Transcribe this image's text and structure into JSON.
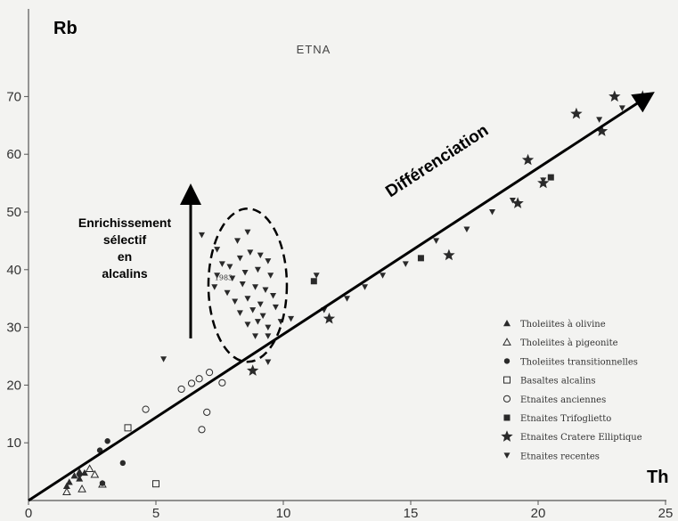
{
  "chart_data": {
    "type": "scatter",
    "title": "ETNA",
    "xlabel": "Th",
    "ylabel": "Rb",
    "xlim": [
      0,
      25
    ],
    "ylim": [
      0,
      72
    ],
    "xticks": [
      0,
      5,
      10,
      15,
      20,
      25
    ],
    "yticks": [
      10,
      20,
      30,
      40,
      50,
      60,
      70
    ],
    "grid": false,
    "legend_position": "bottom-right",
    "series": [
      {
        "name": "Tholeiites à olivine",
        "marker": "triangle-filled",
        "points": [
          [
            1.6,
            3.2
          ],
          [
            1.8,
            4.3
          ],
          [
            2.0,
            5.0
          ],
          [
            2.2,
            4.8
          ],
          [
            1.5,
            2.5
          ],
          [
            2.0,
            3.8
          ]
        ]
      },
      {
        "name": "Tholeiites à pigeonite",
        "marker": "triangle-open",
        "points": [
          [
            1.5,
            1.5
          ],
          [
            2.1,
            2.0
          ],
          [
            2.4,
            5.5
          ],
          [
            2.6,
            4.5
          ],
          [
            2.9,
            2.8
          ]
        ]
      },
      {
        "name": "Tholeiites transitionnelles",
        "marker": "circle-filled",
        "points": [
          [
            2.0,
            4.5
          ],
          [
            2.8,
            8.7
          ],
          [
            3.1,
            10.3
          ],
          [
            2.9,
            3.0
          ],
          [
            3.7,
            6.5
          ]
        ]
      },
      {
        "name": "Basaltes alcalins",
        "marker": "square-open",
        "points": [
          [
            3.9,
            12.6
          ],
          [
            5.0,
            2.9
          ]
        ]
      },
      {
        "name": "Etnaites anciennes",
        "marker": "circle-open",
        "points": [
          [
            4.6,
            15.8
          ],
          [
            6.0,
            19.3
          ],
          [
            6.4,
            20.3
          ],
          [
            6.7,
            21.1
          ],
          [
            7.1,
            22.2
          ],
          [
            7.6,
            20.4
          ],
          [
            6.8,
            12.3
          ],
          [
            7.0,
            15.3
          ]
        ]
      },
      {
        "name": "Etnaites Trifoglietto",
        "marker": "square-filled",
        "points": [
          [
            11.2,
            38.0
          ],
          [
            15.4,
            42.0
          ],
          [
            20.5,
            56.0
          ]
        ]
      },
      {
        "name": "Etnaites Cratere Elliptique",
        "marker": "star",
        "points": [
          [
            8.8,
            22.5
          ],
          [
            11.8,
            31.5
          ],
          [
            16.5,
            42.5
          ],
          [
            19.2,
            51.5
          ],
          [
            20.2,
            55.0
          ],
          [
            21.5,
            67.0
          ],
          [
            22.5,
            64.0
          ],
          [
            23.0,
            70.0
          ],
          [
            24.1,
            70.0
          ],
          [
            19.6,
            59.0
          ]
        ]
      },
      {
        "name": "Etnaites recentes",
        "marker": "triangle-down-filled",
        "points": [
          [
            5.3,
            24.5
          ],
          [
            6.8,
            46.0
          ],
          [
            7.4,
            43.5
          ],
          [
            8.2,
            45.0
          ],
          [
            8.6,
            46.5
          ],
          [
            7.6,
            41.0
          ],
          [
            7.9,
            40.5
          ],
          [
            8.3,
            42.0
          ],
          [
            8.7,
            43.0
          ],
          [
            9.1,
            42.5
          ],
          [
            9.4,
            41.5
          ],
          [
            7.4,
            39.0
          ],
          [
            8.0,
            38.5
          ],
          [
            8.5,
            39.5
          ],
          [
            9.0,
            40.0
          ],
          [
            9.5,
            39.0
          ],
          [
            7.3,
            37.0
          ],
          [
            7.8,
            36.0
          ],
          [
            8.4,
            37.5
          ],
          [
            8.9,
            37.0
          ],
          [
            9.3,
            36.5
          ],
          [
            8.1,
            34.5
          ],
          [
            8.6,
            35.0
          ],
          [
            9.1,
            34.0
          ],
          [
            9.6,
            35.5
          ],
          [
            8.3,
            32.5
          ],
          [
            8.8,
            33.0
          ],
          [
            9.2,
            32.0
          ],
          [
            9.7,
            33.5
          ],
          [
            8.6,
            30.5
          ],
          [
            9.0,
            31.0
          ],
          [
            9.4,
            30.0
          ],
          [
            8.9,
            28.5
          ],
          [
            9.4,
            28.5
          ],
          [
            9.9,
            31.0
          ],
          [
            11.3,
            39.0
          ],
          [
            11.6,
            33.0
          ],
          [
            12.5,
            35.0
          ],
          [
            13.2,
            37.0
          ],
          [
            13.9,
            39.0
          ],
          [
            14.8,
            41.0
          ],
          [
            16.0,
            45.0
          ],
          [
            17.2,
            47.0
          ],
          [
            18.2,
            50.0
          ],
          [
            19.0,
            52.0
          ],
          [
            20.2,
            55.5
          ],
          [
            22.4,
            66.0
          ],
          [
            23.3,
            68.0
          ],
          [
            9.4,
            24.0
          ],
          [
            10.3,
            31.5
          ]
        ]
      }
    ],
    "annotations": {
      "arrow_label": "Différenciation",
      "enrichment_label": [
        "Enrichissement",
        "sélectif",
        "en",
        "alcalins"
      ],
      "year_label": "1983"
    }
  }
}
